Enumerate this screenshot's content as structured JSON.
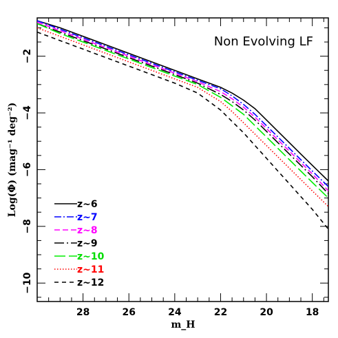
{
  "chart_data": {
    "type": "line",
    "title": "Non Evolving LF",
    "xlabel": "m_H",
    "ylabel": "Log(Φ) (mag⁻¹ deg⁻²)",
    "xlim": [
      30.0,
      17.3
    ],
    "ylim": [
      -10.65,
      -0.65
    ],
    "x_ticks": [
      28,
      26,
      24,
      22,
      20,
      18
    ],
    "y_ticks": [
      -2,
      -4,
      -6,
      -8,
      -10
    ],
    "x_tick_labels": [
      "28",
      "26",
      "24",
      "22",
      "20",
      "18"
    ],
    "y_tick_labels": [
      "−2",
      "−4",
      "−6",
      "−8",
      "−10"
    ],
    "legend_position": "bottom-left",
    "x": [
      30,
      29,
      28,
      27,
      26,
      25,
      24,
      23,
      22,
      21.5,
      21,
      20.5,
      20,
      19.5,
      19,
      18.5,
      18,
      17.3
    ],
    "series": [
      {
        "name": "z~6",
        "color": "#000000",
        "dash": "solid",
        "values": [
          -0.75,
          -1.0,
          -1.3,
          -1.6,
          -1.9,
          -2.2,
          -2.5,
          -2.8,
          -3.1,
          -3.3,
          -3.55,
          -3.85,
          -4.25,
          -4.65,
          -5.05,
          -5.45,
          -5.85,
          -6.4
        ]
      },
      {
        "name": "z~7",
        "color": "#0000ff",
        "dash": "dashdot",
        "values": [
          -0.75,
          -1.05,
          -1.35,
          -1.65,
          -1.95,
          -2.25,
          -2.55,
          -2.85,
          -3.15,
          -3.4,
          -3.7,
          -4.05,
          -4.45,
          -4.85,
          -5.25,
          -5.65,
          -6.05,
          -6.6
        ]
      },
      {
        "name": "z~8",
        "color": "#ff00ff",
        "dash": "dashed",
        "values": [
          -0.8,
          -1.1,
          -1.4,
          -1.7,
          -2.0,
          -2.3,
          -2.6,
          -2.9,
          -3.25,
          -3.5,
          -3.8,
          -4.15,
          -4.55,
          -4.95,
          -5.35,
          -5.75,
          -6.15,
          -6.75
        ]
      },
      {
        "name": "z~9",
        "color": "#000000",
        "dash": "longdashdot",
        "values": [
          -0.85,
          -1.15,
          -1.45,
          -1.75,
          -2.05,
          -2.35,
          -2.65,
          -2.95,
          -3.35,
          -3.6,
          -3.9,
          -4.25,
          -4.65,
          -5.05,
          -5.45,
          -5.85,
          -6.25,
          -6.85
        ]
      },
      {
        "name": "z~10",
        "color": "#00ee00",
        "dash": "longdash",
        "values": [
          -0.85,
          -1.2,
          -1.5,
          -1.8,
          -2.1,
          -2.4,
          -2.7,
          -3.0,
          -3.45,
          -3.75,
          -4.05,
          -4.45,
          -4.85,
          -5.25,
          -5.65,
          -6.05,
          -6.45,
          -7.0
        ]
      },
      {
        "name": "z~11",
        "color": "#ff0000",
        "dash": "dotted",
        "values": [
          -1.0,
          -1.3,
          -1.6,
          -1.9,
          -2.2,
          -2.5,
          -2.8,
          -3.1,
          -3.6,
          -3.95,
          -4.35,
          -4.75,
          -5.15,
          -5.55,
          -5.95,
          -6.35,
          -6.75,
          -7.3
        ]
      },
      {
        "name": "z~12",
        "color": "#000000",
        "dash": "shortdash",
        "values": [
          -1.15,
          -1.45,
          -1.75,
          -2.05,
          -2.35,
          -2.65,
          -2.95,
          -3.3,
          -3.9,
          -4.3,
          -4.7,
          -5.15,
          -5.6,
          -6.05,
          -6.5,
          -6.95,
          -7.4,
          -8.1
        ]
      }
    ]
  }
}
